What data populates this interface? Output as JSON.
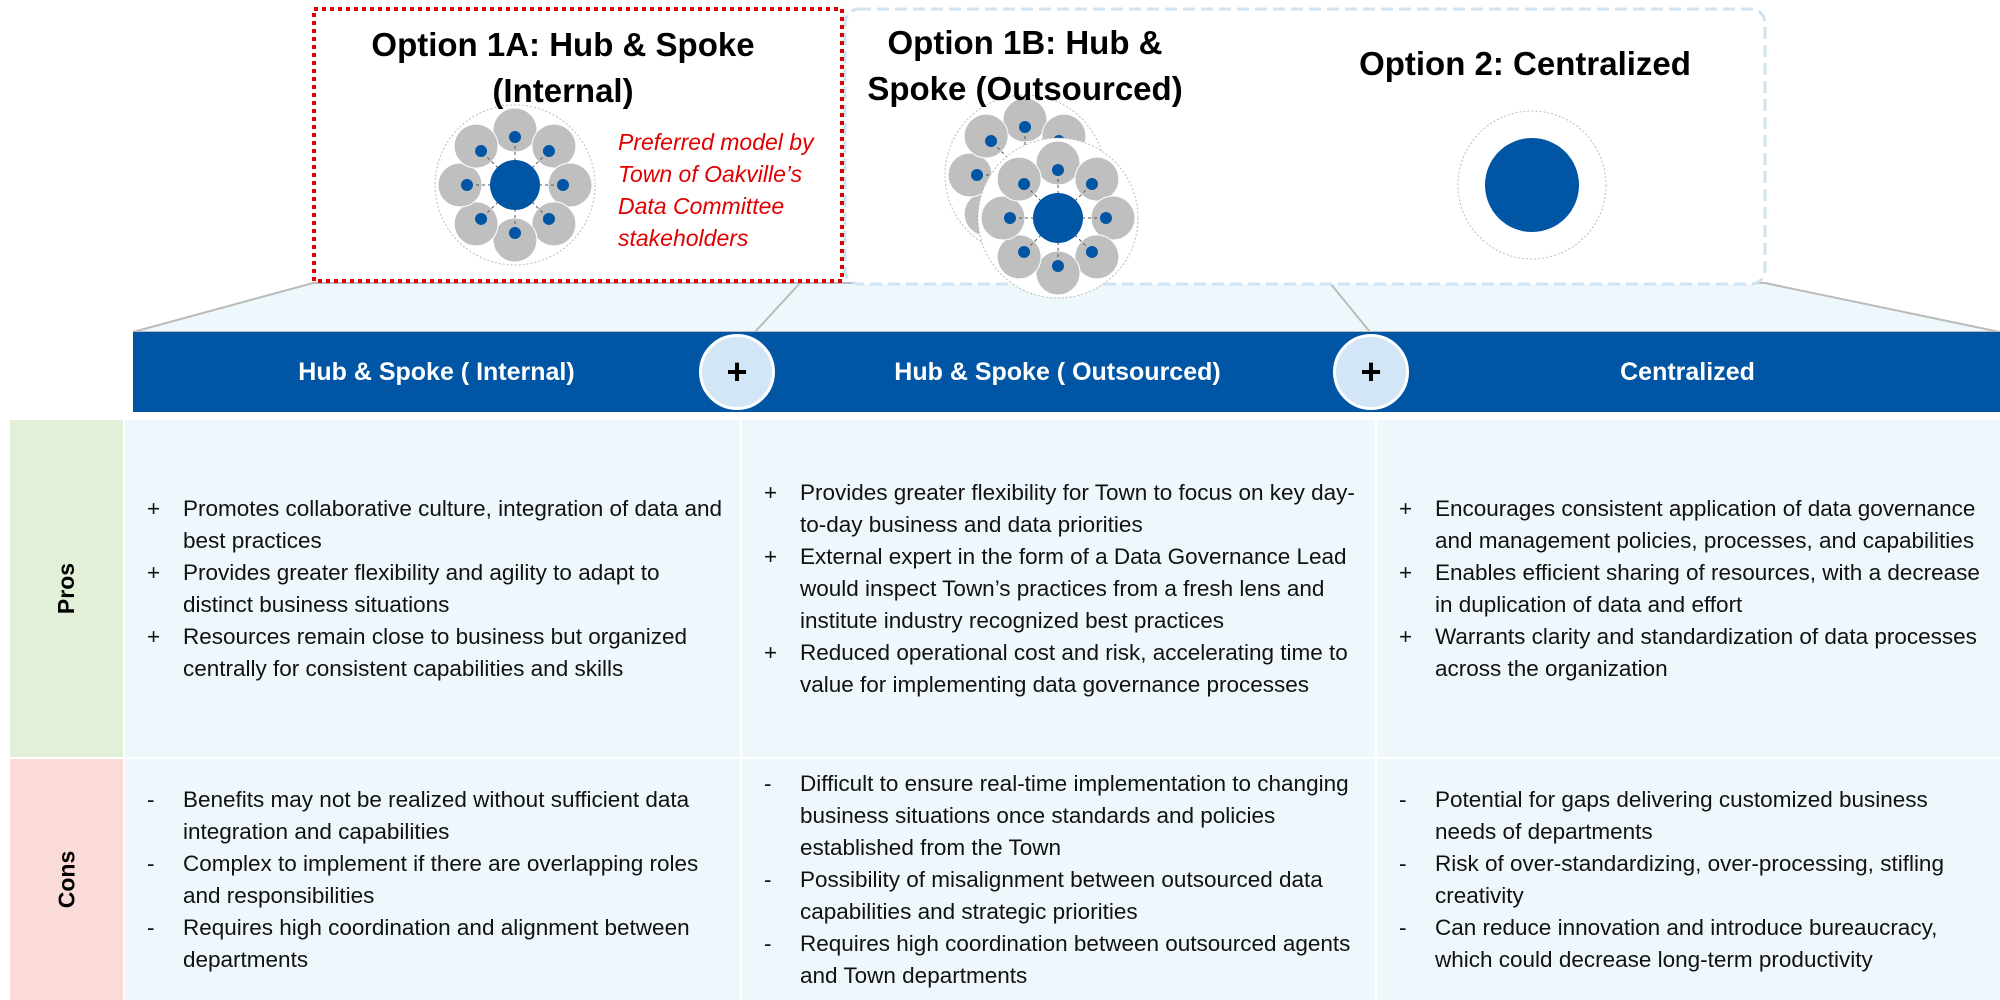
{
  "options": [
    {
      "title": "Option 1A: Hub & Spoke (Internal)"
    },
    {
      "title": "Option 1B: Hub & Spoke (Outsourced)"
    },
    {
      "title": "Option 2: Centralized"
    }
  ],
  "note": "Preferred model by Town of Oakville’s Data Committee stakeholders",
  "table": {
    "connector": "+",
    "headers": [
      "Hub & Spoke ( Internal)",
      "Hub & Spoke ( Outsourced)",
      "Centralized"
    ],
    "rows": [
      {
        "label": "Pros",
        "marker": "+",
        "cells": [
          [
            "Promotes collaborative culture, integration of data and best practices",
            "Provides greater flexibility and agility to adapt to distinct business situations",
            "Resources remain close to business but organized centrally for consistent capabilities and skills"
          ],
          [
            "Provides greater flexibility for Town to focus on key day-to-day business and data priorities",
            "External expert in the form of a Data Governance Lead would inspect Town’s practices from a fresh lens and institute industry recognized best practices",
            "Reduced operational cost and risk, accelerating time to value for implementing data governance processes"
          ],
          [
            "Encourages consistent application of data governance and management policies, processes, and capabilities",
            "Enables efficient sharing of resources, with a decrease in duplication of data and effort",
            "Warrants clarity and standardization of data processes across the organization"
          ]
        ]
      },
      {
        "label": "Cons",
        "marker": "-",
        "cells": [
          [
            "Benefits may not be realized without sufficient data integration and capabilities",
            "Complex to implement if there are overlapping roles and responsibilities",
            "Requires high coordination and alignment between departments"
          ],
          [
            "Difficult to ensure real-time implementation to changing business situations once standards and policies established from the Town",
            "Possibility of misalignment between outsourced data capabilities and strategic priorities",
            "Requires high coordination between outsourced agents and Town departments"
          ],
          [
            "Potential for gaps delivering customized business needs of departments",
            "Risk of over-standardizing, over-processing, stifling creativity",
            "Can reduce innovation and introduce bureaucracy, which could decrease long-term productivity"
          ]
        ]
      }
    ]
  }
}
